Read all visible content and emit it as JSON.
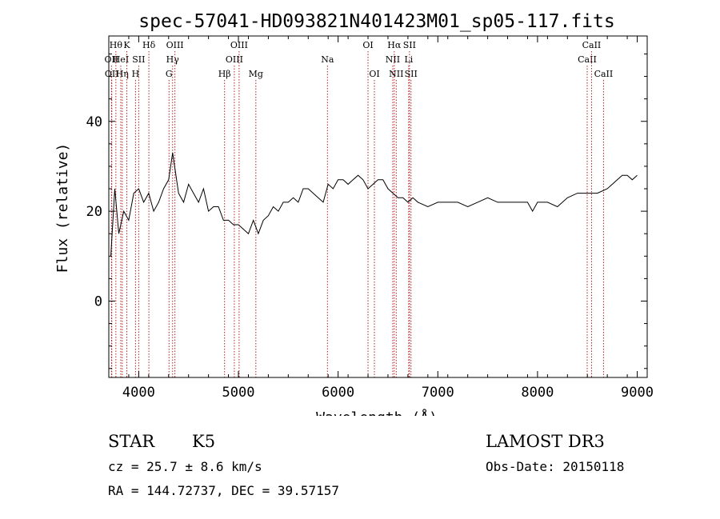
{
  "chart_data": {
    "type": "line",
    "title": "spec-57041-HD093821N401423M01_sp05-117.fits",
    "xlabel": "Wavelength (Å)",
    "ylabel": "Flux (relative)",
    "xlim": [
      3700,
      9100
    ],
    "ylim": [
      -17,
      59
    ],
    "xticks": [
      4000,
      5000,
      6000,
      7000,
      8000,
      9000
    ],
    "yticks": [
      0,
      20,
      40
    ],
    "grid": false,
    "line_color": "#000000",
    "marker_color": "#b22222",
    "series": [
      {
        "x": [
          3720,
          3760,
          3800,
          3850,
          3900,
          3950,
          4000,
          4050,
          4100,
          4150,
          4200,
          4250,
          4300,
          4340,
          4400,
          4450,
          4500,
          4550,
          4600,
          4650,
          4700,
          4750,
          4800,
          4850,
          4900,
          4950,
          5000,
          5050,
          5100,
          5150,
          5200,
          5250,
          5300,
          5350,
          5400,
          5450,
          5500,
          5550,
          5600,
          5650,
          5700,
          5750,
          5800,
          5850,
          5900,
          5950,
          6000,
          6050,
          6100,
          6150,
          6200,
          6250,
          6300,
          6350,
          6400,
          6450,
          6500,
          6550,
          6600,
          6650,
          6700,
          6750,
          6800,
          6900,
          7000,
          7100,
          7200,
          7300,
          7400,
          7500,
          7600,
          7700,
          7800,
          7900,
          7950,
          8000,
          8100,
          8200,
          8300,
          8400,
          8500,
          8600,
          8700,
          8800,
          8850,
          8900,
          8950,
          9000
        ],
        "y": [
          10,
          25,
          15,
          20,
          18,
          24,
          25,
          22,
          24,
          20,
          22,
          25,
          27,
          33,
          24,
          22,
          26,
          24,
          22,
          25,
          20,
          21,
          21,
          18,
          18,
          17,
          17,
          16,
          15,
          18,
          15,
          18,
          19,
          21,
          20,
          22,
          22,
          23,
          22,
          25,
          25,
          24,
          23,
          22,
          26,
          25,
          27,
          27,
          26,
          27,
          28,
          27,
          25,
          26,
          27,
          27,
          25,
          24,
          23,
          23,
          22,
          23,
          22,
          21,
          22,
          22,
          22,
          21,
          22,
          23,
          22,
          22,
          22,
          22,
          20,
          22,
          22,
          21,
          23,
          24,
          24,
          24,
          25,
          27,
          28,
          28,
          27,
          28
        ]
      }
    ],
    "line_markers": [
      {
        "wavelength": 3727,
        "label": "OII",
        "row": 2
      },
      {
        "wavelength": 3730,
        "label": "OII",
        "row": 3
      },
      {
        "wavelength": 3771,
        "label": "Hθ",
        "row": 1
      },
      {
        "wavelength": 3820,
        "label": "HeI",
        "row": 2
      },
      {
        "wavelength": 3835,
        "label": "Hη",
        "row": 3
      },
      {
        "wavelength": 3880,
        "label": "K",
        "row": 1
      },
      {
        "wavelength": 3968,
        "label": "H",
        "row": 3
      },
      {
        "wavelength": 4000,
        "label": "SII",
        "row": 2
      },
      {
        "wavelength": 4102,
        "label": "Hδ",
        "row": 1
      },
      {
        "wavelength": 4304,
        "label": "G",
        "row": 3
      },
      {
        "wavelength": 4340,
        "label": "Hγ",
        "row": 2
      },
      {
        "wavelength": 4363,
        "label": "OIII",
        "row": 1
      },
      {
        "wavelength": 4861,
        "label": "Hβ",
        "row": 3
      },
      {
        "wavelength": 4959,
        "label": "OIII",
        "row": 2
      },
      {
        "wavelength": 5007,
        "label": "OIII",
        "row": 1
      },
      {
        "wavelength": 5175,
        "label": "Mg",
        "row": 3
      },
      {
        "wavelength": 5893,
        "label": "Na",
        "row": 2
      },
      {
        "wavelength": 6300,
        "label": "OI",
        "row": 1
      },
      {
        "wavelength": 6364,
        "label": "OI",
        "row": 3
      },
      {
        "wavelength": 6548,
        "label": "NII",
        "row": 2
      },
      {
        "wavelength": 6563,
        "label": "Hα",
        "row": 1
      },
      {
        "wavelength": 6583,
        "label": "NII",
        "row": 3
      },
      {
        "wavelength": 6708,
        "label": "Li",
        "row": 2
      },
      {
        "wavelength": 6716,
        "label": "SII",
        "row": 1
      },
      {
        "wavelength": 6731,
        "label": "SII",
        "row": 3
      },
      {
        "wavelength": 8498,
        "label": "CaII",
        "row": 2
      },
      {
        "wavelength": 8542,
        "label": "CaII",
        "row": 1
      },
      {
        "wavelength": 8662,
        "label": "CaII",
        "row": 3
      }
    ]
  },
  "info": {
    "class": "STAR",
    "subclass": "K5",
    "survey": "LAMOST DR3",
    "cz": "cz = 25.7 ± 8.6 km/s",
    "obs_date": "Obs-Date: 20150118",
    "coords": "RA = 144.72737, DEC =  39.57157"
  }
}
